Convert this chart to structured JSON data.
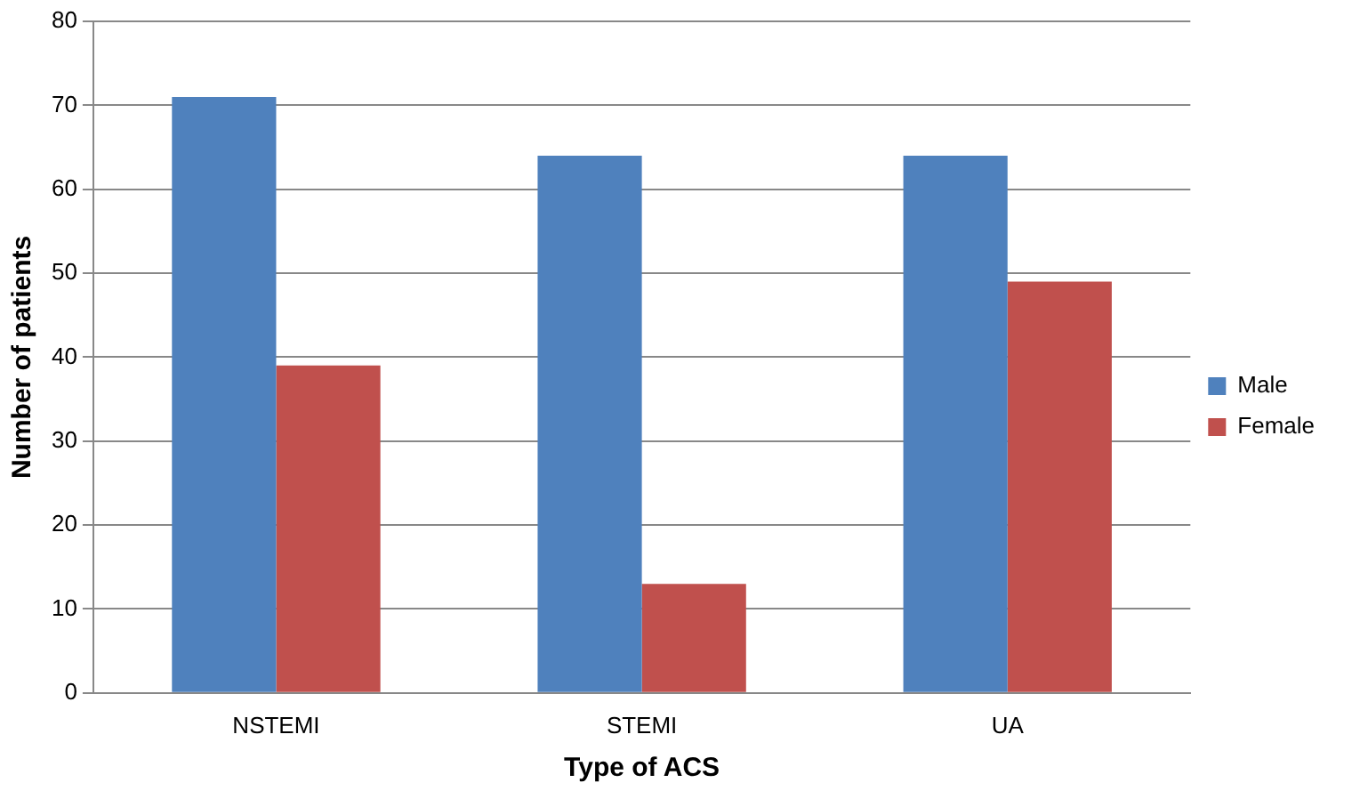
{
  "chart_data": {
    "type": "bar",
    "xlabel": "Type of ACS",
    "ylabel": "Number of patients",
    "categories": [
      "NSTEMI",
      "STEMI",
      "UA"
    ],
    "series": [
      {
        "name": "Male",
        "color": "#4f81bd",
        "values": [
          71,
          64,
          64
        ]
      },
      {
        "name": "Female",
        "color": "#c0504d",
        "values": [
          39,
          13,
          49
        ]
      }
    ],
    "ylim": [
      0,
      80
    ],
    "yticks": [
      0,
      10,
      20,
      30,
      40,
      50,
      60,
      70,
      80
    ],
    "grid": "y",
    "legend": "right"
  }
}
